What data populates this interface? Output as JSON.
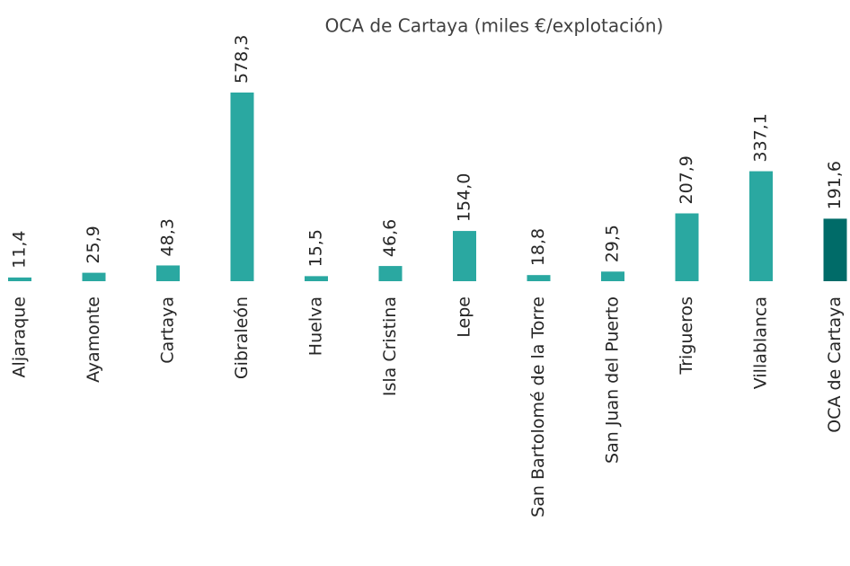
{
  "chart_data": {
    "type": "bar",
    "title": "OCA de Cartaya (miles €/explotación)",
    "categories": [
      "Aljaraque",
      "Ayamonte",
      "Cartaya",
      "Gibraleón",
      "Huelva",
      "Isla Cristina",
      "Lepe",
      "San Bartolomé de la Torre",
      "San Juan del Puerto",
      "Trigueros",
      "Villablanca",
      "OCA de Cartaya"
    ],
    "values": [
      11.4,
      25.9,
      48.3,
      578.3,
      15.5,
      46.6,
      154.0,
      18.8,
      29.5,
      207.9,
      337.1,
      191.6
    ],
    "value_labels": [
      "11,4",
      "25,9",
      "48,3",
      "578,3",
      "15,5",
      "46,6",
      "154,0",
      "18,8",
      "29,5",
      "207,9",
      "337,1",
      "191,6"
    ],
    "colors": [
      "#2aa8a1",
      "#2aa8a1",
      "#2aa8a1",
      "#2aa8a1",
      "#2aa8a1",
      "#2aa8a1",
      "#2aa8a1",
      "#2aa8a1",
      "#2aa8a1",
      "#2aa8a1",
      "#2aa8a1",
      "#006b68"
    ]
  }
}
